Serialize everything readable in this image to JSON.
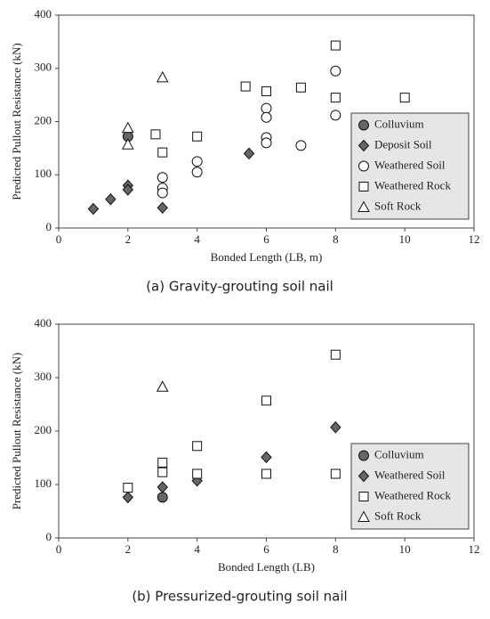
{
  "chart_data": [
    {
      "type": "scatter",
      "caption": "(a) Gravity-grouting soil nail",
      "x_label": "Bonded Length (LB, m)",
      "y_label": "Predicted Pullout Resistance (kN)",
      "xlim": [
        0,
        12
      ],
      "xticks": [
        0,
        2,
        4,
        6,
        8,
        10,
        12
      ],
      "ylim": [
        0,
        400
      ],
      "yticks": [
        0,
        100,
        200,
        300,
        400
      ],
      "legend": "lower right",
      "series": [
        {
          "name": "Colluvium",
          "marker": "circle",
          "color": "#666666",
          "x": [
            2
          ],
          "values": [
            172
          ]
        },
        {
          "name": "Deposit Soil",
          "marker": "diamond",
          "color": "#666666",
          "x": [
            1,
            1.5,
            2,
            2,
            3,
            5.5
          ],
          "values": [
            36,
            54,
            80,
            72,
            38,
            140
          ]
        },
        {
          "name": "Weathered Soil",
          "marker": "circle",
          "color": "#ffffff",
          "x": [
            3,
            3,
            3,
            4,
            4,
            6,
            6,
            6,
            6,
            7,
            8,
            8
          ],
          "values": [
            95,
            75,
            66,
            125,
            105,
            225,
            208,
            170,
            160,
            155,
            295,
            212
          ]
        },
        {
          "name": "Weathered Rock",
          "marker": "square",
          "color": "#ffffff",
          "x": [
            2.8,
            3,
            4,
            5.4,
            6,
            7,
            8,
            8,
            10
          ],
          "values": [
            176,
            142,
            172,
            266,
            257,
            264,
            343,
            245,
            245
          ]
        },
        {
          "name": "Soft Rock",
          "marker": "triangle",
          "color": "#ffffff",
          "x": [
            2,
            2,
            3
          ],
          "values": [
            188,
            157,
            283
          ]
        }
      ]
    },
    {
      "type": "scatter",
      "caption": "(b) Pressurized-grouting soil nail",
      "x_label": "Bonded Length (LB)",
      "y_label": "Predicted Pullout Resistance (kN)",
      "xlim": [
        0,
        12
      ],
      "xticks": [
        0,
        2,
        4,
        6,
        8,
        10,
        12
      ],
      "ylim": [
        0,
        400
      ],
      "yticks": [
        0,
        100,
        200,
        300,
        400
      ],
      "legend": "lower right",
      "series": [
        {
          "name": "Colluvium",
          "marker": "circle",
          "color": "#666666",
          "x": [
            3
          ],
          "values": [
            76
          ]
        },
        {
          "name": "Weathered Soil",
          "marker": "diamond",
          "color": "#666666",
          "x": [
            2,
            3,
            4,
            6,
            8
          ],
          "values": [
            76,
            95,
            107,
            151,
            207
          ]
        },
        {
          "name": "Weathered Rock",
          "marker": "square",
          "color": "#ffffff",
          "x": [
            2,
            3,
            3,
            4,
            4,
            6,
            6,
            8,
            8
          ],
          "values": [
            94,
            141,
            123,
            172,
            120,
            257,
            120,
            343,
            120
          ]
        },
        {
          "name": "Soft Rock",
          "marker": "triangle",
          "color": "#ffffff",
          "x": [
            3
          ],
          "values": [
            283
          ]
        }
      ]
    }
  ]
}
